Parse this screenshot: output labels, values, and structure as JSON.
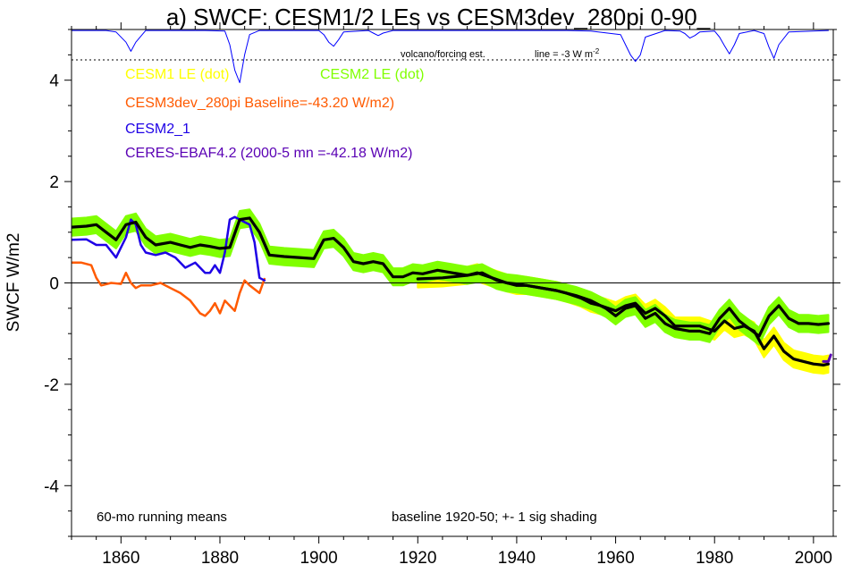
{
  "chart_data": {
    "type": "line",
    "title": "a) SWCF: CESM1/2 LEs vs CESM3dev_280pi 0-90_",
    "ylabel": "SWCF W/m2",
    "xlabel": "",
    "xlim": [
      1850,
      2004
    ],
    "ylim": [
      -5,
      5
    ],
    "x_ticks": [
      1860,
      1880,
      1900,
      1920,
      1940,
      1960,
      1980,
      2000
    ],
    "y_ticks": [
      -4,
      -2,
      0,
      2,
      4
    ],
    "zero_line": true,
    "grid": false,
    "legend": [
      {
        "text": "CESM1 LE (dot)",
        "color": "#ffff00"
      },
      {
        "text": "CESM2 LE (dot)",
        "color": "#80ff00"
      },
      {
        "text": "CESM3dev_280pi Baseline=-43.20 W/m2)",
        "color": "#ff5a00"
      },
      {
        "text": "CESM2_1",
        "color": "#1e00e6"
      },
      {
        "text": "CERES-EBAF4.2 (2000-5 mn =-42.18 W/m2)",
        "color": "#5a00b4"
      }
    ],
    "annotations": {
      "bottom_left": "60-mo running means",
      "bottom_center": "baseline 1920-50; +- 1 sig shading",
      "volcano_label": "volcano/forcing est.",
      "volcano_line_label": "line = -3 W m",
      "volcano_line_sup": "-2"
    },
    "volcano_reference_y": 4.4,
    "series": [
      {
        "name": "CESM1 LE (dot)",
        "color": "#ffff00",
        "band_halfwidth": 0.17,
        "x": [
          1920,
          1925,
          1930,
          1932,
          1935,
          1938,
          1940,
          1942,
          1945,
          1948,
          1950,
          1953,
          1955,
          1957,
          1960,
          1962,
          1964,
          1966,
          1968,
          1970,
          1972,
          1975,
          1977,
          1980,
          1982,
          1984,
          1986,
          1988,
          1990,
          1992,
          1994,
          1996,
          1998,
          2000,
          2002,
          2003
        ],
        "y": [
          0.08,
          0.1,
          0.15,
          0.2,
          0.1,
          0.0,
          -0.05,
          -0.05,
          -0.1,
          -0.15,
          -0.2,
          -0.3,
          -0.4,
          -0.45,
          -0.55,
          -0.45,
          -0.4,
          -0.6,
          -0.5,
          -0.65,
          -0.85,
          -0.85,
          -0.85,
          -0.95,
          -0.75,
          -0.9,
          -0.85,
          -0.95,
          -1.3,
          -1.05,
          -1.35,
          -1.5,
          -1.55,
          -1.6,
          -1.62,
          -1.6
        ]
      },
      {
        "name": "CESM2 LE (dot)",
        "color": "#80ff00",
        "band_halfwidth": 0.17,
        "x": [
          1850,
          1853,
          1855,
          1857,
          1859,
          1861,
          1863,
          1865,
          1867,
          1870,
          1872,
          1874,
          1876,
          1878,
          1880,
          1882,
          1884,
          1886,
          1888,
          1890,
          1893,
          1896,
          1899,
          1901,
          1903,
          1905,
          1907,
          1909,
          1911,
          1913,
          1915,
          1917,
          1919,
          1921,
          1924,
          1927,
          1930,
          1933,
          1936,
          1938,
          1940,
          1942,
          1945,
          1948,
          1950,
          1952,
          1955,
          1958,
          1960,
          1962,
          1964,
          1966,
          1968,
          1970,
          1972,
          1975,
          1977,
          1979,
          1981,
          1983,
          1985,
          1987,
          1989,
          1991,
          1993,
          1995,
          1997,
          1999,
          2001,
          2003
        ],
        "y": [
          1.1,
          1.12,
          1.15,
          1.0,
          0.85,
          1.15,
          1.2,
          0.9,
          0.75,
          0.8,
          0.75,
          0.7,
          0.75,
          0.72,
          0.68,
          0.7,
          1.25,
          1.28,
          1.0,
          0.55,
          0.52,
          0.5,
          0.48,
          0.85,
          0.88,
          0.7,
          0.42,
          0.38,
          0.42,
          0.38,
          0.12,
          0.12,
          0.2,
          0.18,
          0.25,
          0.2,
          0.15,
          0.2,
          0.05,
          0.0,
          -0.02,
          -0.05,
          -0.1,
          -0.15,
          -0.2,
          -0.25,
          -0.35,
          -0.5,
          -0.65,
          -0.5,
          -0.45,
          -0.7,
          -0.6,
          -0.8,
          -0.9,
          -0.95,
          -0.95,
          -1.0,
          -0.7,
          -0.5,
          -0.75,
          -0.9,
          -1.05,
          -0.65,
          -0.45,
          -0.7,
          -0.8,
          -0.8,
          -0.82,
          -0.8
        ]
      },
      {
        "name": "CESM3dev_280pi Baseline=-43.20 W/m2)",
        "color": "#ff5a00",
        "x": [
          1850,
          1852,
          1854,
          1855,
          1856,
          1858,
          1860,
          1861,
          1862,
          1863,
          1864,
          1866,
          1868,
          1870,
          1872,
          1874,
          1876,
          1877,
          1878,
          1879,
          1880,
          1881,
          1883,
          1884,
          1885,
          1886,
          1888,
          1889
        ],
        "y": [
          0.4,
          0.4,
          0.35,
          0.1,
          -0.05,
          0.0,
          -0.02,
          0.2,
          0.0,
          -0.1,
          -0.05,
          -0.05,
          0.0,
          -0.1,
          -0.2,
          -0.35,
          -0.6,
          -0.65,
          -0.55,
          -0.4,
          -0.6,
          -0.35,
          -0.55,
          -0.2,
          0.05,
          -0.05,
          -0.2,
          0.08
        ]
      },
      {
        "name": "CESM2_1",
        "color": "#1e00e6",
        "x": [
          1850,
          1853,
          1855,
          1857,
          1859,
          1861,
          1862,
          1863,
          1864,
          1865,
          1867,
          1869,
          1871,
          1873,
          1875,
          1877,
          1878,
          1879,
          1880,
          1881,
          1882,
          1883,
          1884,
          1885,
          1886,
          1887,
          1888,
          1889
        ],
        "y": [
          0.85,
          0.86,
          0.75,
          0.75,
          0.5,
          0.9,
          1.25,
          1.15,
          0.75,
          0.6,
          0.55,
          0.6,
          0.5,
          0.3,
          0.4,
          0.2,
          0.2,
          0.35,
          0.2,
          0.6,
          1.25,
          1.3,
          1.25,
          1.2,
          1.15,
          0.8,
          0.1,
          0.05
        ]
      },
      {
        "name": "CESM1 LE mean",
        "color": "#000000",
        "x": [
          1920,
          1925,
          1930,
          1932,
          1935,
          1938,
          1940,
          1942,
          1945,
          1948,
          1950,
          1953,
          1955,
          1957,
          1960,
          1962,
          1964,
          1966,
          1968,
          1970,
          1972,
          1975,
          1977,
          1980,
          1982,
          1984,
          1986,
          1988,
          1990,
          1992,
          1994,
          1996,
          1998,
          2000,
          2002,
          2003
        ],
        "y": [
          0.08,
          0.1,
          0.15,
          0.2,
          0.1,
          0.0,
          -0.05,
          -0.05,
          -0.1,
          -0.15,
          -0.2,
          -0.3,
          -0.4,
          -0.45,
          -0.55,
          -0.45,
          -0.4,
          -0.6,
          -0.5,
          -0.65,
          -0.85,
          -0.85,
          -0.85,
          -0.95,
          -0.75,
          -0.9,
          -0.85,
          -0.95,
          -1.3,
          -1.05,
          -1.35,
          -1.5,
          -1.55,
          -1.6,
          -1.62,
          -1.6
        ]
      },
      {
        "name": "CESM2 LE mean",
        "color": "#000000",
        "x": [
          1850,
          1853,
          1855,
          1857,
          1859,
          1861,
          1863,
          1865,
          1867,
          1870,
          1872,
          1874,
          1876,
          1878,
          1880,
          1882,
          1884,
          1886,
          1888,
          1890,
          1893,
          1896,
          1899,
          1901,
          1903,
          1905,
          1907,
          1909,
          1911,
          1913,
          1915,
          1917,
          1919,
          1921,
          1924,
          1927,
          1930,
          1933,
          1936,
          1938,
          1940,
          1942,
          1945,
          1948,
          1950,
          1952,
          1955,
          1958,
          1960,
          1962,
          1964,
          1966,
          1968,
          1970,
          1972,
          1975,
          1977,
          1979,
          1981,
          1983,
          1985,
          1987,
          1989,
          1991,
          1993,
          1995,
          1997,
          1999,
          2001,
          2003
        ],
        "y": [
          1.1,
          1.12,
          1.15,
          1.0,
          0.85,
          1.15,
          1.2,
          0.9,
          0.75,
          0.8,
          0.75,
          0.7,
          0.75,
          0.72,
          0.68,
          0.7,
          1.25,
          1.28,
          1.0,
          0.55,
          0.52,
          0.5,
          0.48,
          0.85,
          0.88,
          0.7,
          0.42,
          0.38,
          0.42,
          0.38,
          0.12,
          0.12,
          0.2,
          0.18,
          0.25,
          0.2,
          0.15,
          0.2,
          0.05,
          0.0,
          -0.02,
          -0.05,
          -0.1,
          -0.15,
          -0.2,
          -0.25,
          -0.35,
          -0.5,
          -0.65,
          -0.5,
          -0.45,
          -0.7,
          -0.6,
          -0.8,
          -0.9,
          -0.95,
          -0.95,
          -1.0,
          -0.7,
          -0.5,
          -0.75,
          -0.9,
          -1.05,
          -0.65,
          -0.45,
          -0.7,
          -0.8,
          -0.8,
          -0.82,
          -0.8
        ]
      },
      {
        "name": "CERES-EBAF4.2 (2000-5 mn =-42.18 W/m2)",
        "color": "#5a00b4",
        "x": [
          2002,
          2003,
          2003.5
        ],
        "y": [
          -1.55,
          -1.55,
          -1.42
        ]
      },
      {
        "name": "volcano/forcing est.",
        "color": "#0000ff",
        "x": [
          1850,
          1857,
          1859,
          1861,
          1862,
          1863,
          1865,
          1870,
          1877,
          1881,
          1882,
          1883,
          1884,
          1885,
          1886,
          1888,
          1895,
          1900,
          1901,
          1902,
          1903,
          1904,
          1905,
          1910,
          1911,
          1912,
          1913,
          1915,
          1920,
          1930,
          1940,
          1950,
          1955,
          1961,
          1962,
          1963,
          1964,
          1965,
          1966,
          1970,
          1973,
          1974,
          1975,
          1976,
          1977,
          1980,
          1981,
          1982,
          1983,
          1984,
          1985,
          1988,
          1990,
          1991,
          1992,
          1993,
          1995,
          2003
        ],
        "y": [
          4.98,
          4.98,
          4.95,
          4.75,
          4.57,
          4.75,
          4.98,
          4.98,
          4.98,
          4.97,
          4.7,
          4.2,
          3.95,
          4.5,
          4.9,
          4.98,
          4.98,
          4.98,
          4.9,
          4.75,
          4.67,
          4.8,
          4.95,
          4.98,
          4.93,
          4.88,
          4.93,
          4.98,
          4.98,
          4.98,
          4.98,
          4.98,
          4.97,
          4.9,
          4.7,
          4.5,
          4.37,
          4.5,
          4.85,
          4.98,
          4.97,
          4.92,
          4.83,
          4.88,
          4.95,
          4.97,
          4.85,
          4.68,
          4.52,
          4.7,
          4.92,
          4.98,
          4.92,
          4.65,
          4.43,
          4.7,
          4.95,
          4.98
        ]
      }
    ]
  }
}
